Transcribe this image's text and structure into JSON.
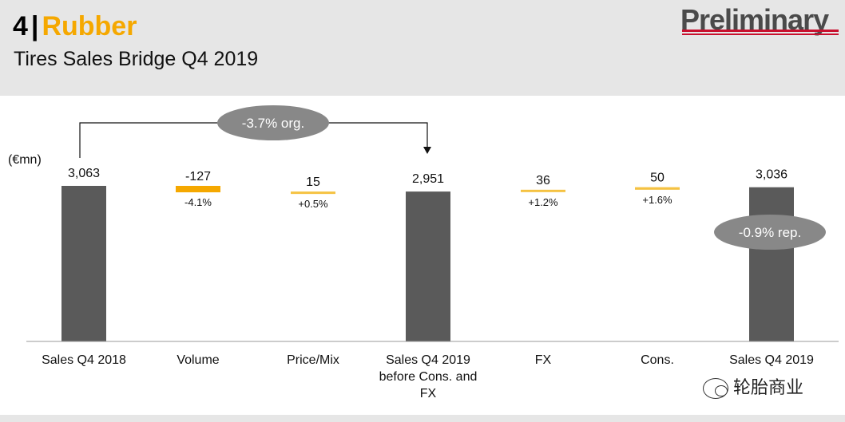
{
  "header": {
    "section_number": "4",
    "separator": "|",
    "section_title": "Rubber",
    "subtitle": "Tires Sales Bridge Q4 2019",
    "stamp": "Preliminary"
  },
  "unit_label": "(€mn)",
  "annotations": {
    "organic": "-3.7% org.",
    "reported": "-0.9% rep."
  },
  "watermark": "轮胎商业",
  "colors": {
    "total_bar": "#5a5a5a",
    "volume_bar": "#f5a800",
    "positive_bar": "#f5c242",
    "oval": "#888888",
    "accent": "#f5a800"
  },
  "chart_data": {
    "type": "bar",
    "subtype": "waterfall",
    "title": "Tires Sales Bridge Q4 2019",
    "ylabel": "(€mn)",
    "categories": [
      "Sales Q4 2018",
      "Volume",
      "Price/Mix",
      "Sales Q4 2019 before Cons. and FX",
      "FX",
      "Cons.",
      "Sales Q4 2019"
    ],
    "category_lines": [
      [
        "Sales Q4 2018"
      ],
      [
        "Volume"
      ],
      [
        "Price/Mix"
      ],
      [
        "Sales Q4 2019",
        "before Cons. and",
        "FX"
      ],
      [
        "FX"
      ],
      [
        "Cons."
      ],
      [
        "Sales Q4 2019"
      ]
    ],
    "bars": [
      {
        "category": "Sales Q4 2018",
        "kind": "total",
        "value": 3063,
        "label": "3,063",
        "pct": ""
      },
      {
        "category": "Volume",
        "kind": "delta",
        "value": -127,
        "label": "-127",
        "pct": "-4.1%"
      },
      {
        "category": "Price/Mix",
        "kind": "delta",
        "value": 15,
        "label": "15",
        "pct": "+0.5%"
      },
      {
        "category": "Sales Q4 2019 before Cons. and FX",
        "kind": "total",
        "value": 2951,
        "label": "2,951",
        "pct": ""
      },
      {
        "category": "FX",
        "kind": "delta",
        "value": 36,
        "label": "36",
        "pct": "+1.2%"
      },
      {
        "category": "Cons.",
        "kind": "delta",
        "value": 50,
        "label": "50",
        "pct": "+1.6%"
      },
      {
        "category": "Sales Q4 2019",
        "kind": "total",
        "value": 3036,
        "label": "3,036",
        "pct": ""
      }
    ]
  }
}
